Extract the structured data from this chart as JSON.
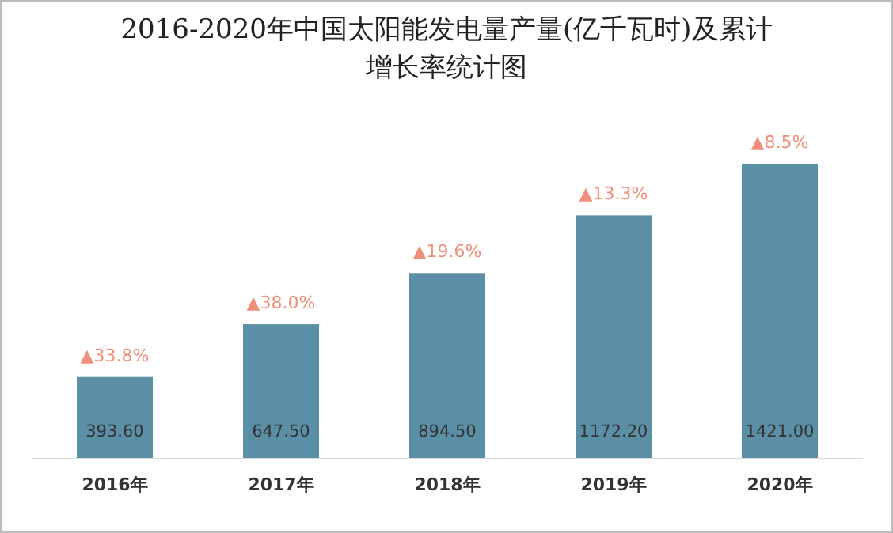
{
  "chart_data": {
    "type": "bar",
    "title": "2016-2020年中国太阳能发电量产量(亿千瓦时)及累计增长率统计图",
    "categories": [
      "2016年",
      "2017年",
      "2018年",
      "2019年",
      "2020年"
    ],
    "values": [
      393.6,
      647.5,
      894.5,
      1172.2,
      1421.0
    ],
    "value_labels": [
      "393.60",
      "647.50",
      "894.50",
      "1172.20",
      "1421.00"
    ],
    "color": "#5a8fa6",
    "annotations": [
      {
        "text": "▲33.8%",
        "x": "2016年",
        "y": 393.6
      },
      {
        "text": "▲38.0%",
        "x": "2017年",
        "y": 647.5
      },
      {
        "text": "▲19.6%",
        "x": "2018年",
        "y": 894.5
      },
      {
        "text": "▲13.3%",
        "x": "2019年",
        "y": 1172.2
      },
      {
        "text": "▲8.5%",
        "x": "2020年",
        "y": 1421.0
      }
    ]
  }
}
